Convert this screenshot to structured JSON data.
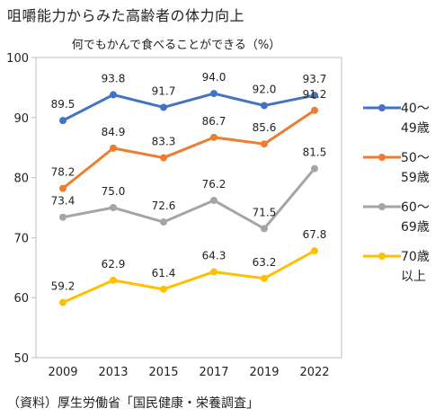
{
  "page": {
    "title": "咀嚼能力からみた高齢者の体力向上",
    "source": "（資料）厚生労働省「国民健康・栄養調査」"
  },
  "chart_data": {
    "type": "line",
    "title": "何でもかんで食べることができる（%）",
    "xlabel": "",
    "ylabel": "",
    "x": [
      "2009",
      "2013",
      "2015",
      "2017",
      "2019",
      "2022"
    ],
    "ylim": [
      50,
      100
    ],
    "yticks": [
      50,
      60,
      70,
      80,
      90,
      100
    ],
    "grid": false,
    "legend_position": "right",
    "series": [
      {
        "name": "40～\n49歳",
        "color": "#4472C4",
        "values": [
          89.5,
          93.8,
          91.7,
          94.0,
          92.0,
          93.7
        ]
      },
      {
        "name": "50～\n59歳",
        "color": "#ED7D31",
        "values": [
          78.2,
          84.9,
          83.3,
          86.7,
          85.6,
          91.2
        ]
      },
      {
        "name": "60～\n69歳",
        "color": "#A5A5A5",
        "values": [
          73.4,
          75.0,
          72.6,
          76.2,
          71.5,
          81.5
        ]
      },
      {
        "name": "70歳\n以上",
        "color": "#FFC000",
        "values": [
          59.2,
          62.9,
          61.4,
          64.3,
          63.2,
          67.8
        ]
      }
    ]
  }
}
